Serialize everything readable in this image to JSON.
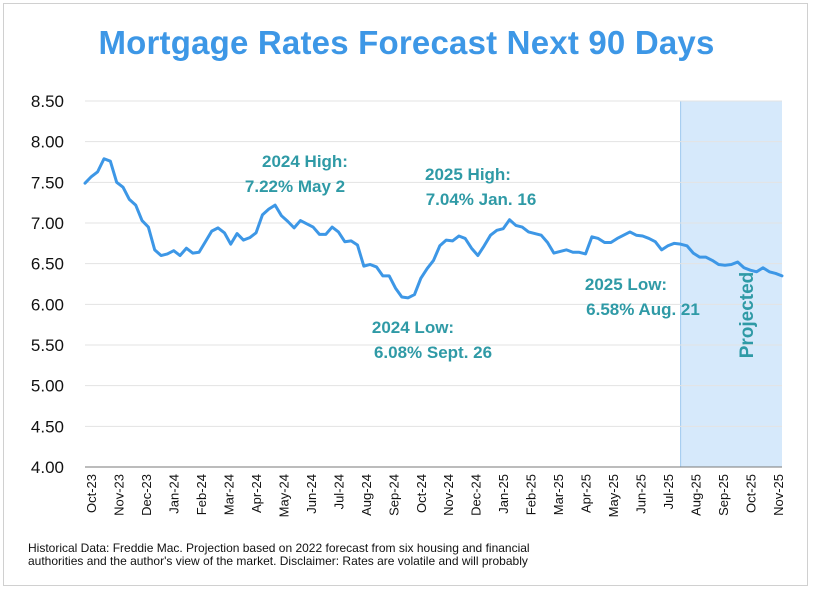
{
  "chart_data": {
    "type": "line",
    "title": "Mortgage Rates Forecast Next 90 Days",
    "xlabel": "",
    "ylabel": "",
    "ylim": [
      4.0,
      8.5
    ],
    "yticks": [
      "4.00",
      "4.50",
      "5.00",
      "5.50",
      "6.00",
      "6.50",
      "7.00",
      "7.50",
      "8.00",
      "8.50"
    ],
    "xticks": [
      "Oct-23",
      "Nov-23",
      "Dec-23",
      "Jan-24",
      "Feb-24",
      "Mar-24",
      "Apr-24",
      "May-24",
      "Jun-24",
      "Jul-24",
      "Aug-24",
      "Sep-24",
      "Oct-24",
      "Nov-24",
      "Dec-24",
      "Jan-25",
      "Feb-25",
      "Mar-25",
      "Apr-25",
      "May-25",
      "Jun-25",
      "Jul-25",
      "Aug-25",
      "Sep-25",
      "Oct-25",
      "Nov-25"
    ],
    "grid": true,
    "line_color": "#3d97e6",
    "projection_shade": "#d6e9fb",
    "projection_start_week": 94,
    "projection_label": "Projected",
    "series": [
      {
        "values": [
          7.49,
          7.57,
          7.63,
          7.79,
          7.76,
          7.5,
          7.44,
          7.29,
          7.22,
          7.03,
          6.95,
          6.67,
          6.6,
          6.62,
          6.66,
          6.6,
          6.69,
          6.63,
          6.64,
          6.77,
          6.9,
          6.94,
          6.88,
          6.74,
          6.87,
          6.79,
          6.82,
          6.88,
          7.1,
          7.17,
          7.22,
          7.09,
          7.02,
          6.94,
          7.03,
          6.99,
          6.95,
          6.86,
          6.86,
          6.95,
          6.89,
          6.77,
          6.78,
          6.73,
          6.47,
          6.49,
          6.46,
          6.35,
          6.35,
          6.2,
          6.09,
          6.08,
          6.12,
          6.32,
          6.44,
          6.54,
          6.72,
          6.79,
          6.78,
          6.84,
          6.81,
          6.69,
          6.6,
          6.72,
          6.85,
          6.91,
          6.93,
          7.04,
          6.97,
          6.95,
          6.89,
          6.87,
          6.85,
          6.76,
          6.63,
          6.65,
          6.67,
          6.64,
          6.64,
          6.62,
          6.83,
          6.81,
          6.76,
          6.76,
          6.81,
          6.85,
          6.89,
          6.85,
          6.84,
          6.81,
          6.77,
          6.67,
          6.72,
          6.75,
          6.74,
          6.72,
          6.63,
          6.58,
          6.58,
          6.54,
          6.49,
          6.48,
          6.49,
          6.52,
          6.45,
          6.42,
          6.4,
          6.45,
          6.4,
          6.38,
          6.35
        ]
      }
    ],
    "annotations": [
      {
        "lines": [
          "2024 High:",
          "7.22% May 2"
        ]
      },
      {
        "lines": [
          "2025 High:",
          "7.04% Jan. 16"
        ]
      },
      {
        "lines": [
          "2024 Low:",
          "6.08% Sept. 26"
        ]
      },
      {
        "lines": [
          "2025 Low:",
          "6.58% Aug. 21"
        ]
      }
    ]
  },
  "footnote": {
    "line1": "Historical Data: Freddie Mac. Projection based on 2022 forecast from six housing and financial",
    "line2": "authorities and the author's view of the market. Disclaimer: Rates are volatile and will probably"
  }
}
